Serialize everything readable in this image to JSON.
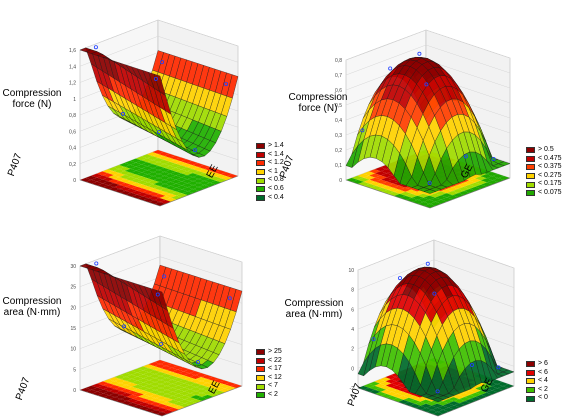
{
  "chart_data": [
    {
      "type": "surface3d",
      "panel": "top-left",
      "zlabel_lines": [
        "Compression",
        "force (N)"
      ],
      "xlabel": "P407",
      "ylabel": "EE",
      "zlim": [
        0,
        1.6
      ],
      "zticks": [
        "0",
        "0,2",
        "0,4",
        "0,6",
        "0,8",
        "1",
        "1,2",
        "1,4",
        "1,6"
      ],
      "legend": [
        {
          "label": "> 1.4",
          "color": "#8b0000"
        },
        {
          "label": "< 1.4",
          "color": "#c00000"
        },
        {
          "label": "< 1.2",
          "color": "#ff2a00"
        },
        {
          "label": "< 1",
          "color": "#ffd200"
        },
        {
          "label": "< 0.8",
          "color": "#a0dc00"
        },
        {
          "label": "< 0.6",
          "color": "#20b000"
        },
        {
          "label": "< 0.4",
          "color": "#006b2b"
        }
      ],
      "surface_shape": "valley"
    },
    {
      "type": "surface3d",
      "panel": "top-right",
      "zlabel_lines": [
        "Compression",
        "force (N)"
      ],
      "xlabel": "P407",
      "ylabel": "GE",
      "zlim": [
        0,
        0.8
      ],
      "zticks": [
        "0",
        "0,1",
        "0,2",
        "0,3",
        "0,4",
        "0,5",
        "0,6",
        "0,7",
        "0,8"
      ],
      "legend": [
        {
          "label": "> 0.5",
          "color": "#8b0000"
        },
        {
          "label": "< 0.475",
          "color": "#c00000"
        },
        {
          "label": "< 0.375",
          "color": "#ff4000"
        },
        {
          "label": "< 0.275",
          "color": "#ffd200"
        },
        {
          "label": "< 0.175",
          "color": "#a0dc00"
        },
        {
          "label": "< 0.075",
          "color": "#20a800"
        }
      ],
      "surface_shape": "dome"
    },
    {
      "type": "surface3d",
      "panel": "bottom-left",
      "zlabel_lines": [
        "Compression",
        "area (N·mm)"
      ],
      "xlabel": "P407",
      "ylabel": "EE",
      "zlim": [
        0,
        30
      ],
      "zticks": [
        "0",
        "5",
        "10",
        "15",
        "20",
        "25",
        "30"
      ],
      "legend": [
        {
          "label": "> 25",
          "color": "#8b0000"
        },
        {
          "label": "< 22",
          "color": "#c00000"
        },
        {
          "label": "< 17",
          "color": "#ff2a00"
        },
        {
          "label": "< 12",
          "color": "#ffd200"
        },
        {
          "label": "< 7",
          "color": "#a0dc00"
        },
        {
          "label": "< 2",
          "color": "#20b000"
        }
      ],
      "surface_shape": "valley"
    },
    {
      "type": "surface3d",
      "panel": "bottom-right",
      "zlabel_lines": [
        "Compression",
        "area (N·mm)"
      ],
      "xlabel": "P407",
      "ylabel": "GE",
      "zlim": [
        -2,
        10
      ],
      "zticks": [
        "-2",
        "0",
        "2",
        "4",
        "6",
        "8",
        "10"
      ],
      "legend": [
        {
          "label": "> 6",
          "color": "#8b0000"
        },
        {
          "label": "< 6",
          "color": "#e00000"
        },
        {
          "label": "< 4",
          "color": "#ffd200"
        },
        {
          "label": "< 2",
          "color": "#40c000"
        },
        {
          "label": "< 0",
          "color": "#006b2b"
        }
      ],
      "surface_shape": "dome"
    }
  ]
}
